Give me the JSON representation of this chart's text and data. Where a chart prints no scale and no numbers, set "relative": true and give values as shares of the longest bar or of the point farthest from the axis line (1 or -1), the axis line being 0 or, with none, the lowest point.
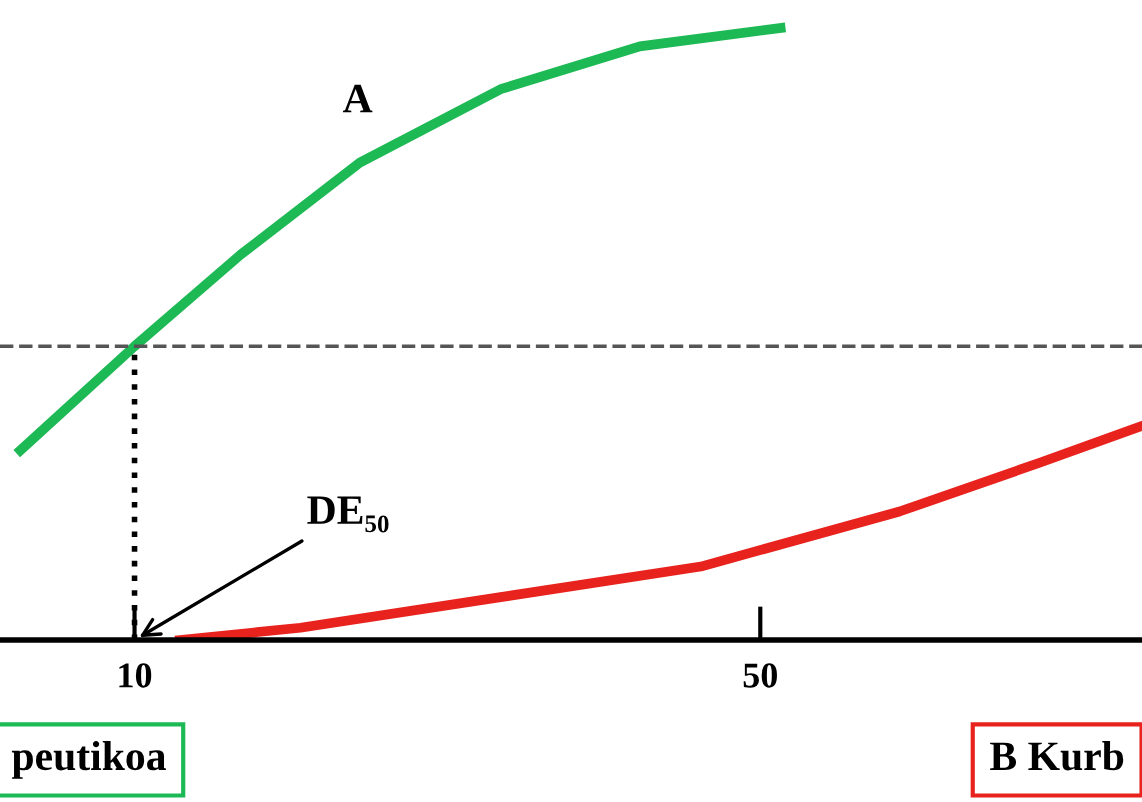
{
  "chart_data": {
    "type": "line",
    "relative": true,
    "xlim": [
      1.4,
      74.4
    ],
    "xticks": [
      10,
      50
    ],
    "grid": false,
    "legend": false,
    "marker": "none",
    "line_style": "solid",
    "series": [
      {
        "color": "#1db954",
        "x": [
          2.7,
          10,
          16.8,
          24.4,
          33.4,
          42.3,
          51.3
        ],
        "values": [
          0.31,
          0.48,
          0.63,
          0.78,
          0.9,
          0.97,
          1.0
        ]
      },
      {
        "color": "#e8231e",
        "x": [
          12.9,
          20.6,
          33.4,
          46.2,
          58.9,
          67.9,
          74.4
        ],
        "values": [
          0,
          0.02,
          0.07,
          0.12,
          0.21,
          0.29,
          0.35
        ]
      }
    ],
    "ref_lines": [
      {
        "axis": "y",
        "value": 0.48,
        "line_style": "dashed",
        "color": "#555555"
      },
      {
        "axis": "x",
        "value": 10,
        "line_style": "dotted",
        "color": "#000000"
      }
    ],
    "annotations": [
      "A",
      {
        "text": "DE₅₀",
        "x": 10,
        "y": 0
      },
      "peutikoa",
      "B Kurb"
    ]
  }
}
